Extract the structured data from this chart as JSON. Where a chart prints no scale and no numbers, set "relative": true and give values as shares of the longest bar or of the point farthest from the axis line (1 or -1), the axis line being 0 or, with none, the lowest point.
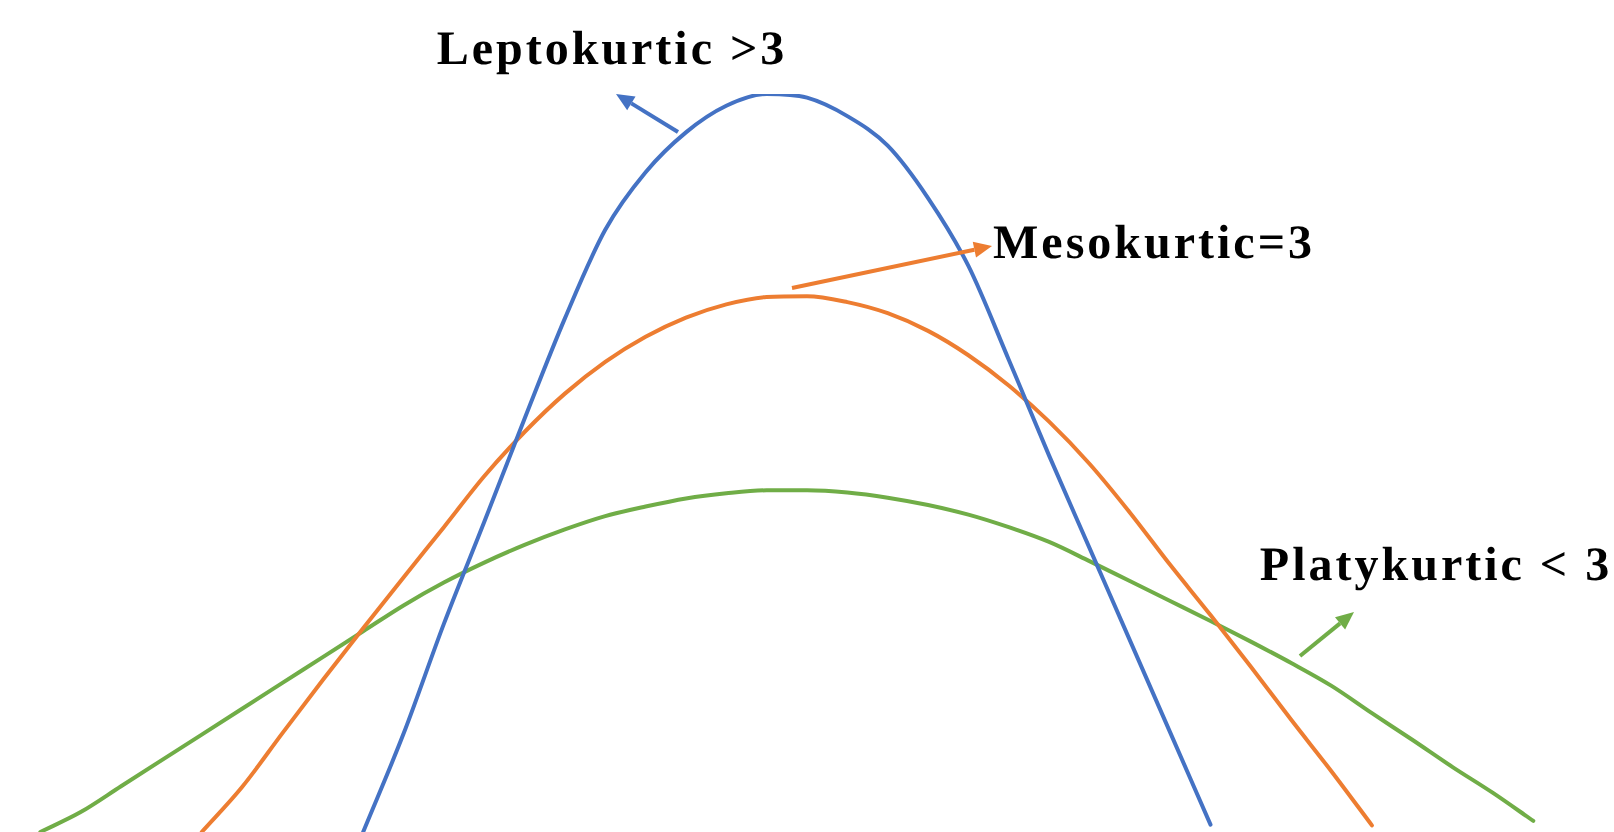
{
  "chart_data": {
    "type": "line",
    "relative": true,
    "categories": [
      null,
      null,
      null,
      null,
      null,
      null,
      null,
      null,
      null,
      null,
      null,
      null,
      null,
      null,
      null,
      null,
      null,
      null,
      null,
      null,
      null,
      null,
      null,
      null,
      null,
      null,
      null,
      null,
      null,
      null,
      null,
      null,
      null,
      null,
      null,
      null,
      null,
      null,
      null,
      null,
      null
    ],
    "series": [
      {
        "name": "Leptokurtic >3",
        "color": "#4472c4",
        "values": [
          null,
          null,
          null,
          null,
          null,
          null,
          null,
          null,
          null,
          0,
          0.133,
          0.282,
          0.42,
          0.56,
          0.696,
          0.816,
          0.894,
          0.948,
          0.984,
          1,
          0.995,
          0.97,
          0.93,
          0.859,
          0.767,
          0.64,
          0.51,
          0.385,
          0.26,
          0.135,
          0.01,
          null,
          null,
          null,
          null,
          null,
          null,
          null,
          null,
          null,
          null
        ]
      },
      {
        "name": "Mesokurtic=3",
        "color": "#ed7d31",
        "values": [
          null,
          null,
          null,
          null,
          null,
          0,
          0.061,
          0.134,
          0.206,
          0.276,
          0.345,
          0.413,
          0.482,
          0.542,
          0.594,
          0.637,
          0.671,
          0.697,
          0.715,
          0.725,
          0.726,
          0.718,
          0.703,
          0.679,
          0.646,
          0.605,
          0.556,
          0.499,
          0.433,
          0.362,
          0.294,
          0.224,
          0.152,
          0.082,
          0.009,
          null,
          null,
          null,
          null,
          null,
          null
        ]
      },
      {
        "name": "Platykurtic < 3",
        "color": "#70ad47",
        "values": [
          null,
          0,
          0.027,
          0.062,
          0.097,
          0.132,
          0.167,
          0.202,
          0.237,
          0.272,
          0.307,
          0.338,
          0.365,
          0.389,
          0.41,
          0.428,
          0.441,
          0.452,
          0.459,
          0.463,
          0.463,
          0.46,
          0.453,
          0.443,
          0.43,
          0.413,
          0.393,
          0.367,
          0.34,
          0.313,
          0.286,
          0.258,
          0.229,
          0.198,
          0.161,
          0.125,
          0.088,
          0.053,
          0.015,
          null,
          null
        ]
      }
    ]
  }
}
